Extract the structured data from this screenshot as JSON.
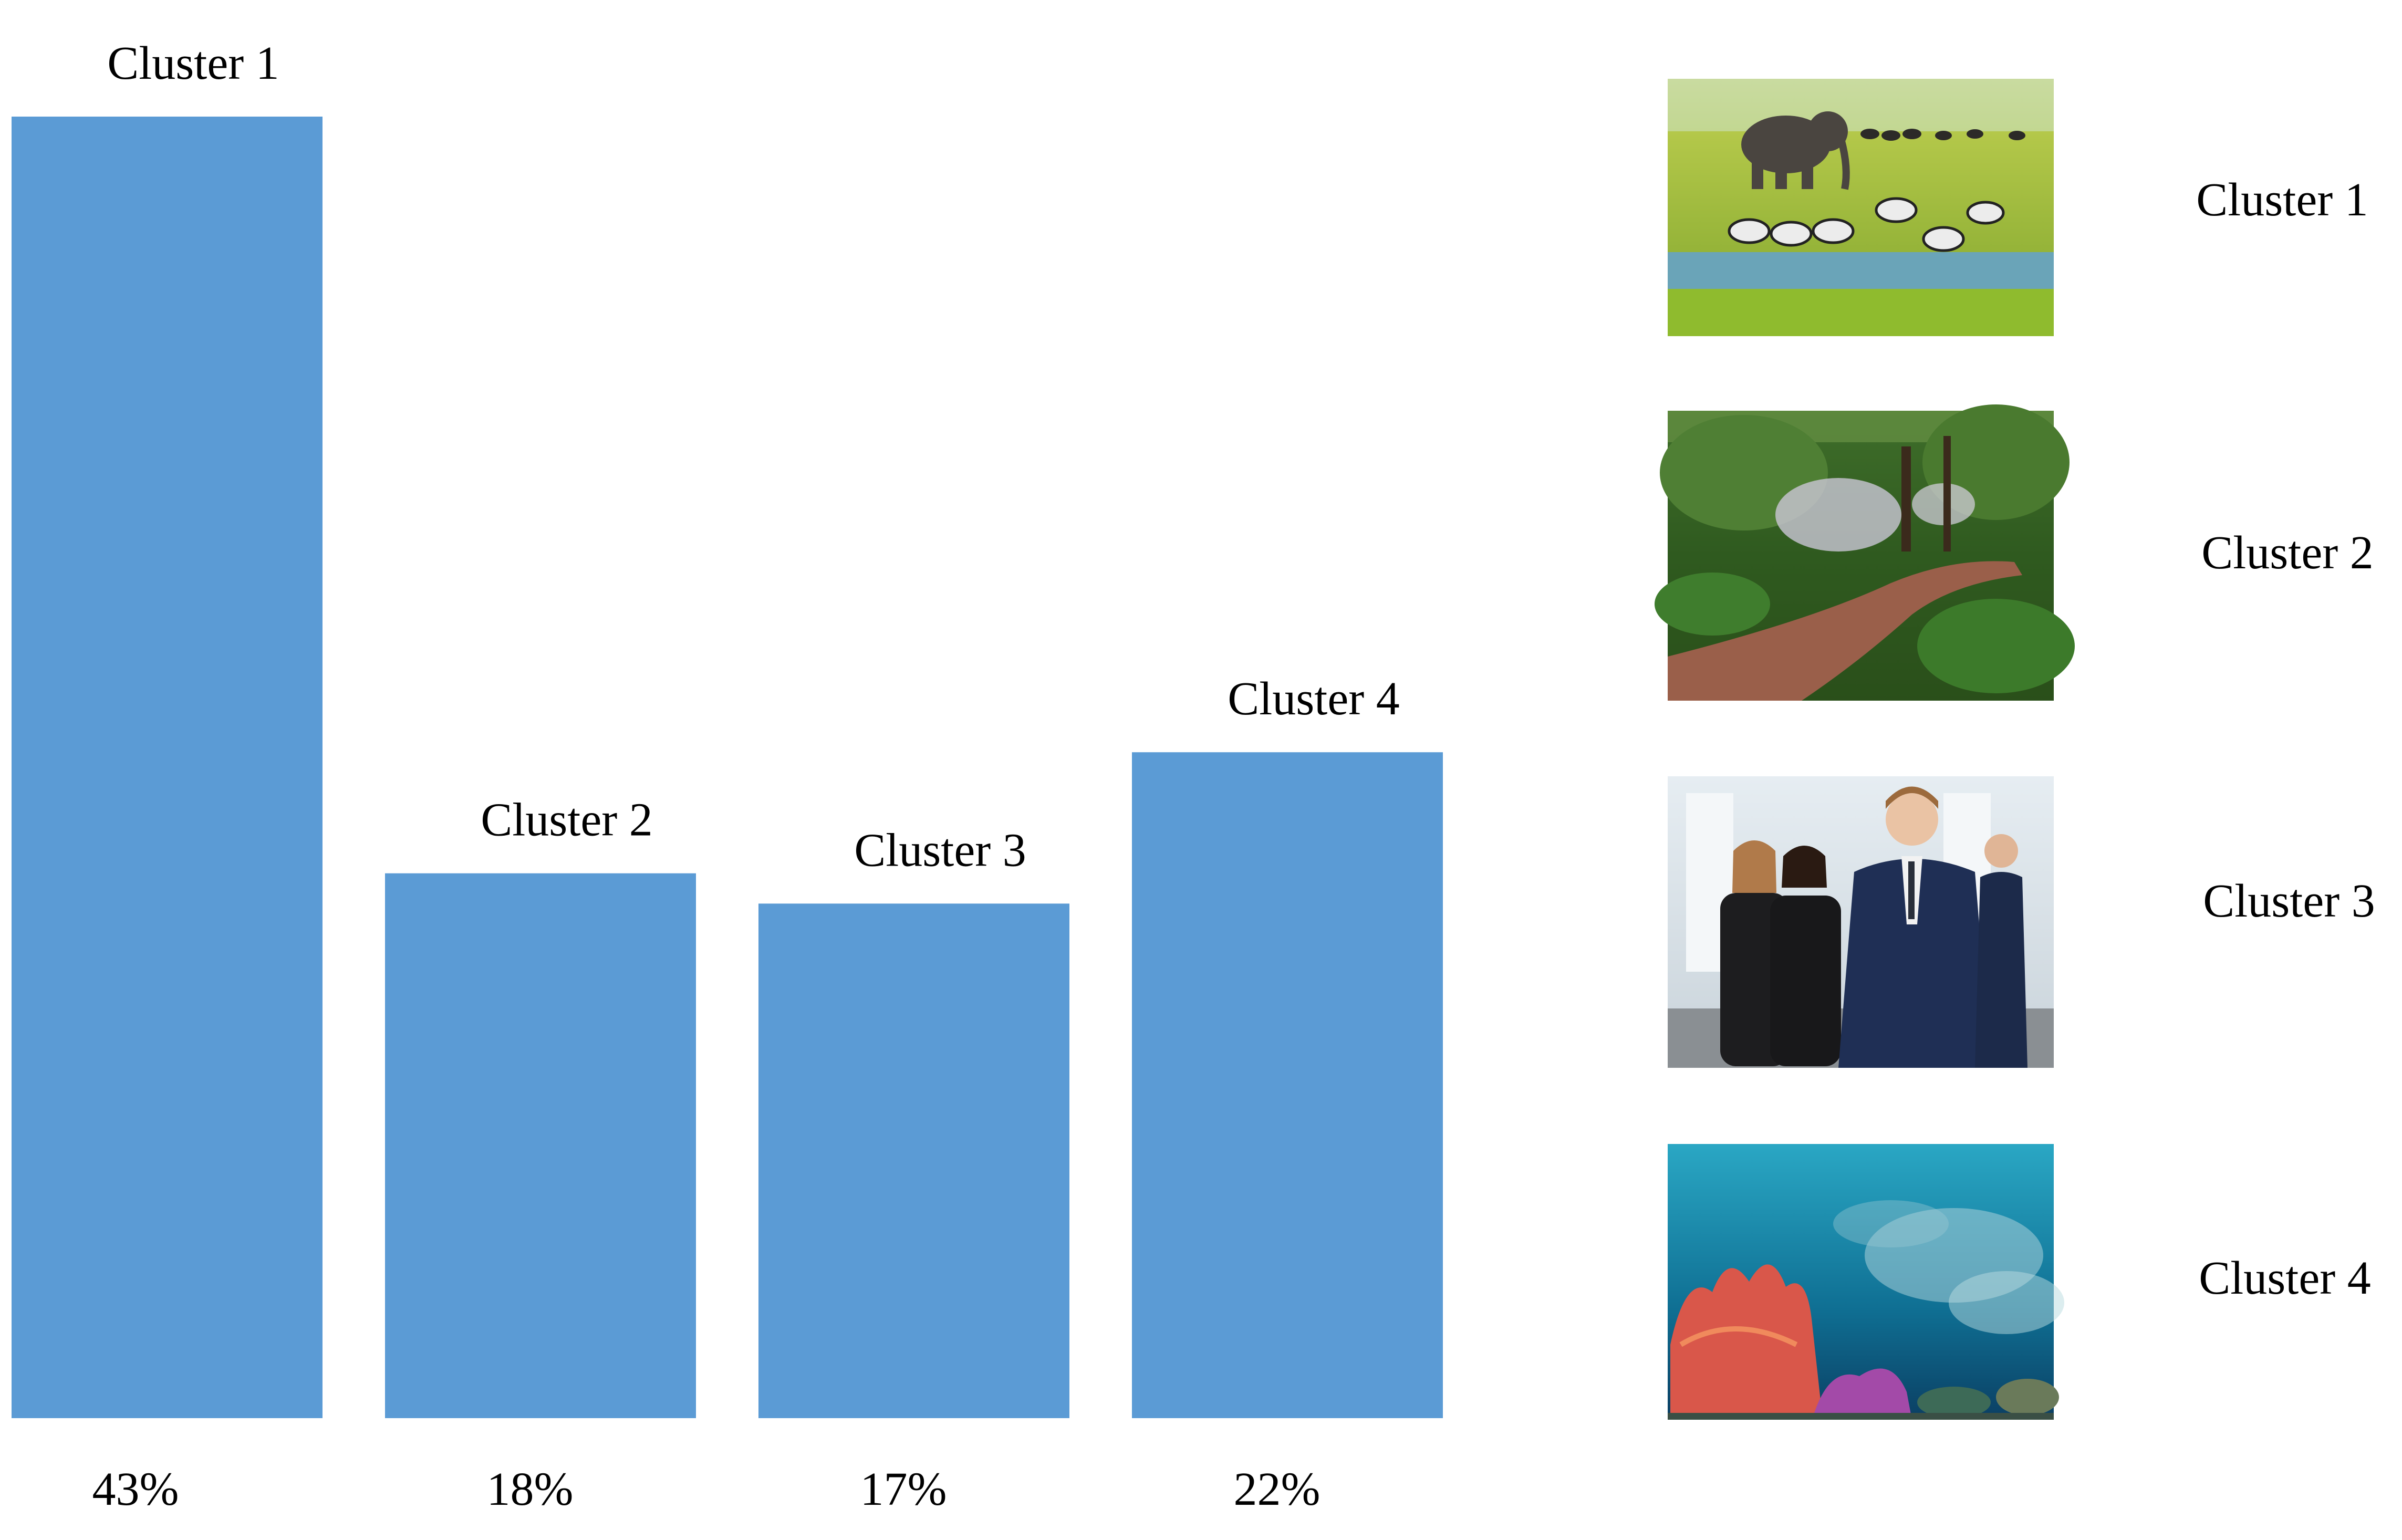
{
  "chart_data": {
    "type": "bar",
    "categories": [
      "Cluster 1",
      "Cluster 2",
      "Cluster 3",
      "Cluster 4"
    ],
    "values": [
      43,
      18,
      17,
      22
    ],
    "value_labels": [
      "43%",
      "18%",
      "17%",
      "22%"
    ],
    "bar_color": "#5b9bd5",
    "ylim": [
      0,
      43
    ],
    "grid": false
  },
  "legend": {
    "items": [
      {
        "label": "Cluster 1",
        "image": "savanna-elephant-zebras-photo"
      },
      {
        "label": "Cluster 2",
        "image": "garden-brick-path-photo"
      },
      {
        "label": "Cluster 3",
        "image": "business-people-photo"
      },
      {
        "label": "Cluster 4",
        "image": "coral-reef-fish-photo"
      }
    ]
  }
}
